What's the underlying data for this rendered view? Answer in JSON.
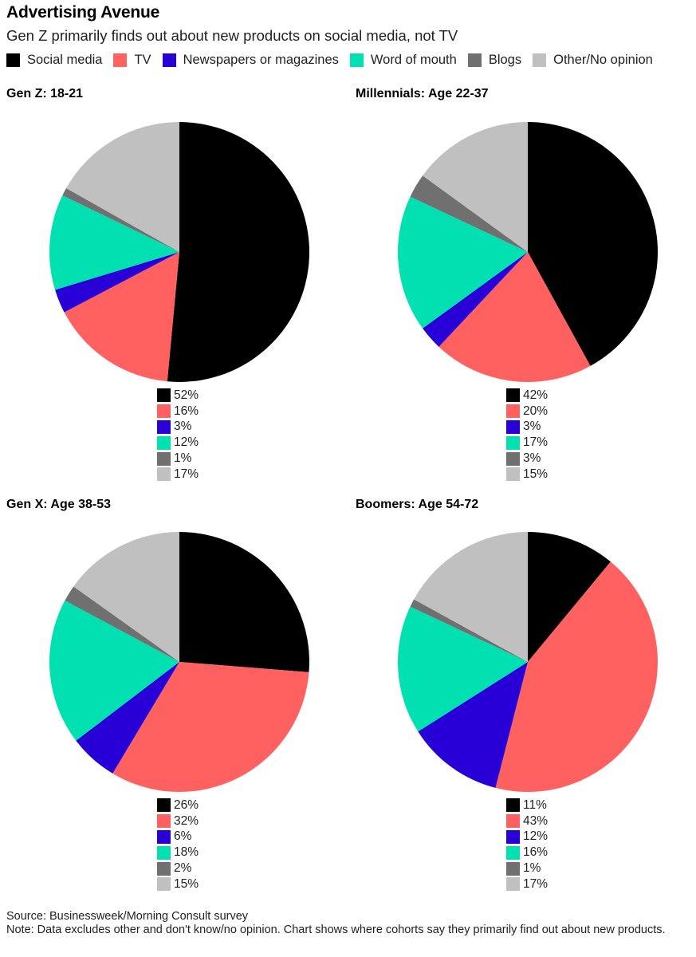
{
  "header": {
    "title": "Advertising Avenue",
    "subtitle": "Gen Z primarily finds out about new products on social media, not TV"
  },
  "legend": [
    {
      "label": "Social media",
      "color": "#000000"
    },
    {
      "label": "TV",
      "color": "#ff6060"
    },
    {
      "label": "Newspapers or magazines",
      "color": "#2800d7"
    },
    {
      "label": "Word of mouth",
      "color": "#00e0b0"
    },
    {
      "label": "Blogs",
      "color": "#707070"
    },
    {
      "label": "Other/No opinion",
      "color": "#c0c0c0"
    }
  ],
  "chart_data": [
    {
      "type": "pie",
      "title": "Gen Z: 18-21",
      "categories": [
        "Social media",
        "TV",
        "Newspapers or magazines",
        "Word of mouth",
        "Blogs",
        "Other/No opinion"
      ],
      "values": [
        52,
        16,
        3,
        12,
        1,
        17
      ],
      "value_labels": [
        "52%",
        "16%",
        "3%",
        "12%",
        "1%",
        "17%"
      ]
    },
    {
      "type": "pie",
      "title": "Millennials: Age 22-37",
      "categories": [
        "Social media",
        "TV",
        "Newspapers or magazines",
        "Word of mouth",
        "Blogs",
        "Other/No opinion"
      ],
      "values": [
        42,
        20,
        3,
        17,
        3,
        15
      ],
      "value_labels": [
        "42%",
        "20%",
        "3%",
        "17%",
        "3%",
        "15%"
      ]
    },
    {
      "type": "pie",
      "title": "Gen X: Age 38-53",
      "categories": [
        "Social media",
        "TV",
        "Newspapers or magazines",
        "Word of mouth",
        "Blogs",
        "Other/No opinion"
      ],
      "values": [
        26,
        32,
        6,
        18,
        2,
        15
      ],
      "value_labels": [
        "26%",
        "32%",
        "6%",
        "18%",
        "2%",
        "15%"
      ]
    },
    {
      "type": "pie",
      "title": "Boomers: Age 54-72",
      "categories": [
        "Social media",
        "TV",
        "Newspapers or magazines",
        "Word of mouth",
        "Blogs",
        "Other/No opinion"
      ],
      "values": [
        11,
        43,
        12,
        16,
        1,
        17
      ],
      "value_labels": [
        "11%",
        "43%",
        "12%",
        "16%",
        "1%",
        "17%"
      ]
    }
  ],
  "footer": {
    "source": "Source: Businessweek/Morning Consult survey",
    "note": "Note: Data excludes other and don't know/no opinion. Chart shows where cohorts say they primarily find out about new products."
  }
}
